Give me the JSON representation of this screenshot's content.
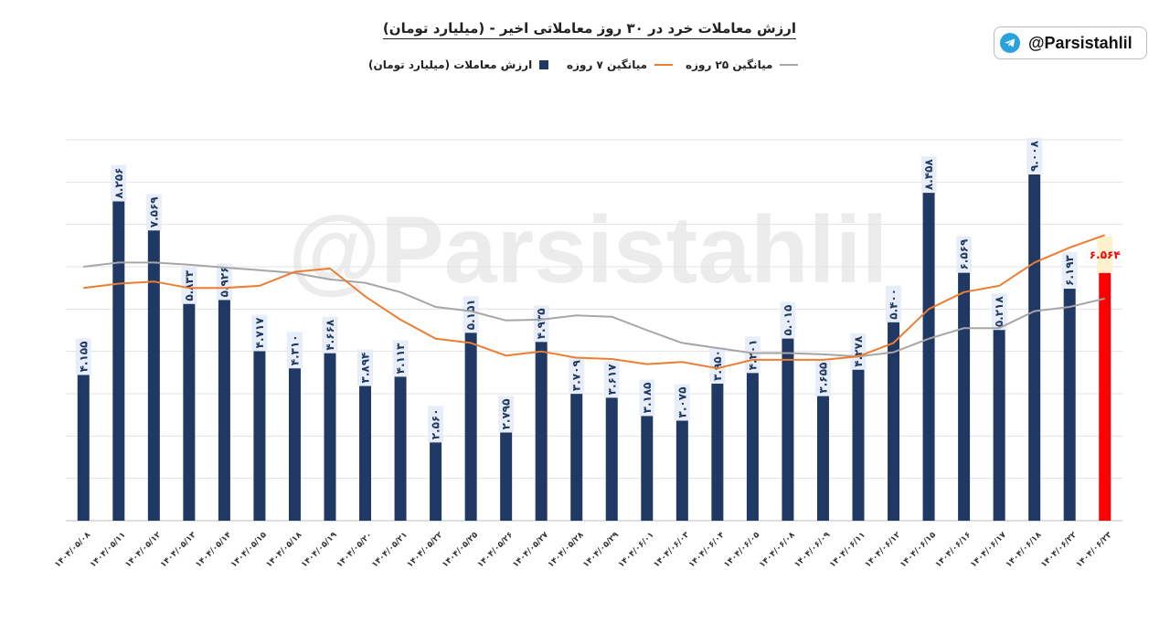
{
  "brand": {
    "handle": "@Parsistahlil",
    "icon": "telegram-icon",
    "icon_color": "#2aa3dd"
  },
  "watermark": "@Parsistahlil",
  "chart_data": {
    "type": "bar",
    "title": "ارزش معاملات خرد در ۳۰ روز معاملاتی اخیر - (میلیارد تومان)",
    "legend_position": "top",
    "grid": true,
    "ylim": [
      0,
      9.0
    ],
    "categories": [
      "۱۴۰۴/۰۵/۰۸",
      "۱۴۰۴/۰۵/۱۱",
      "۱۴۰۴/۰۵/۱۲",
      "۱۴۰۴/۰۵/۱۳",
      "۱۴۰۴/۰۵/۱۴",
      "۱۴۰۴/۰۵/۱۵",
      "۱۴۰۴/۰۵/۱۸",
      "۱۴۰۴/۰۵/۱۹",
      "۱۴۰۴/۰۵/۲۰",
      "۱۴۰۴/۰۵/۲۱",
      "۱۴۰۴/۰۵/۲۲",
      "۱۴۰۴/۰۵/۲۵",
      "۱۴۰۴/۰۵/۲۶",
      "۱۴۰۴/۰۵/۲۷",
      "۱۴۰۴/۰۵/۲۸",
      "۱۴۰۴/۰۵/۲۹",
      "۱۴۰۴/۰۶/۰۱",
      "۱۴۰۴/۰۶/۰۳",
      "۱۴۰۴/۰۶/۰۴",
      "۱۴۰۴/۰۶/۰۵",
      "۱۴۰۴/۰۶/۰۸",
      "۱۴۰۴/۰۶/۰۹",
      "۱۴۰۴/۰۶/۱۱",
      "۱۴۰۴/۰۶/۱۲",
      "۱۴۰۴/۰۶/۱۵",
      "۱۴۰۴/۰۶/۱۶",
      "۱۴۰۴/۰۶/۱۷",
      "۱۴۰۴/۰۶/۱۸",
      "۱۴۰۴/۰۶/۲۲",
      "۱۴۰۴/۰۶/۲۳"
    ],
    "series": [
      {
        "name": "ارزش معاملات (میلیارد تومان)",
        "type": "bar",
        "color": "#1f3864",
        "highlight_color": "#ff0000",
        "highlight_index": 29,
        "values": [
          4.155,
          8.256,
          7.569,
          5.833,
          5.926,
          4.717,
          4.31,
          4.668,
          3.894,
          4.113,
          2.56,
          5.151,
          2.795,
          4.935,
          3.709,
          3.617,
          3.185,
          3.075,
          3.95,
          4.201,
          5.015,
          3.655,
          4.278,
          5.4,
          8.458,
          6.569,
          5.218,
          9.008,
          6.193,
          6.564
        ],
        "labels": [
          "۴.۱۵۵",
          "۸.۲۵۶",
          "۷.۵۶۹",
          "۵.۸۳۳",
          "۵.۹۲۶",
          "۴.۷۱۷",
          "۴.۳۱۰",
          "۴.۶۶۸",
          "۳.۸۹۴",
          "۴.۱۱۳",
          "۲.۵۶۰",
          "۵.۱۵۱",
          "۲.۷۹۵",
          "۴.۹۳۵",
          "۳.۷۰۹",
          "۳.۶۱۷",
          "۳.۱۸۵",
          "۳.۰۷۵",
          "۳.۹۵۰",
          "۴.۲۰۱",
          "۵.۰۱۵",
          "۳.۶۵۵",
          "۴.۲۷۸",
          "۵.۴۰۰",
          "۸.۴۵۸",
          "۶.۵۶۹",
          "۵.۲۱۸",
          "۹.۰۰۸",
          "۶.۱۹۳",
          "۶.۵۶۴"
        ]
      },
      {
        "name": "میانگین ۷ روزه",
        "type": "line",
        "color": "#ed7d31",
        "values": [
          5.5,
          5.6,
          5.65,
          5.5,
          5.5,
          5.55,
          5.88,
          5.96,
          5.3,
          4.75,
          4.3,
          4.2,
          3.9,
          4.0,
          3.85,
          3.82,
          3.7,
          3.75,
          3.6,
          3.8,
          3.8,
          3.8,
          3.88,
          4.2,
          5.0,
          5.4,
          5.55,
          6.1,
          6.45,
          6.75
        ]
      },
      {
        "name": "میانگین ۲۵ روزه",
        "type": "line",
        "color": "#a6a6a6",
        "values": [
          6.0,
          6.1,
          6.1,
          6.05,
          5.98,
          5.92,
          5.85,
          5.7,
          5.62,
          5.4,
          5.05,
          4.95,
          4.73,
          4.75,
          4.85,
          4.82,
          4.5,
          4.2,
          4.08,
          3.96,
          3.96,
          3.93,
          3.88,
          3.98,
          4.3,
          4.55,
          4.55,
          4.95,
          5.05,
          5.25
        ]
      }
    ]
  }
}
